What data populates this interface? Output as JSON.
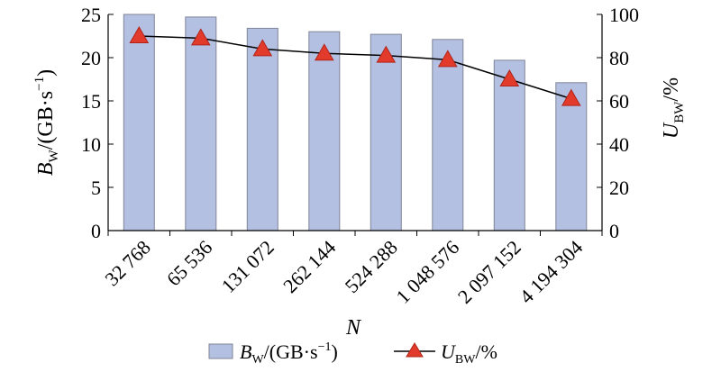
{
  "chart_data": {
    "type": "bar+line",
    "categories": [
      "32 768",
      "65 536",
      "131 072",
      "262 144",
      "524 288",
      "1 048 576",
      "2 097 152",
      "4 194 304"
    ],
    "xlabel": "N",
    "series": [
      {
        "name": "BW/(GB·s⁻¹)",
        "type": "bar",
        "axis": "left",
        "values": [
          25.0,
          24.7,
          23.4,
          23.0,
          22.7,
          22.1,
          19.7,
          17.1
        ]
      },
      {
        "name": "UBW/%",
        "type": "line",
        "axis": "right",
        "values": [
          90,
          89,
          84,
          82,
          81,
          79,
          70,
          61
        ]
      }
    ],
    "y_left": {
      "label_main": "B",
      "label_sub": "W",
      "label_rest": "/(GB·s",
      "label_sup": "−1",
      "label_end": ")",
      "lim": [
        0,
        25
      ],
      "ticks": [
        "0",
        "5",
        "10",
        "15",
        "20",
        "25"
      ]
    },
    "y_right": {
      "label_main": "U",
      "label_sub": "BW",
      "label_rest": "/%",
      "lim": [
        0,
        100
      ],
      "ticks": [
        "0",
        "20",
        "40",
        "60",
        "80",
        "100"
      ]
    },
    "legend": {
      "placement": "bottom",
      "bar": {
        "main": "B",
        "sub": "W",
        "rest": "/(GB·s",
        "sup": "−1",
        "end": ")"
      },
      "line": {
        "main": "U",
        "sub": "BW",
        "rest": "/%"
      }
    },
    "colors": {
      "bar_fill": "#b4c0e2",
      "bar_stroke": "#7f8597",
      "line": "#000000",
      "marker_fill": "#e23b2c",
      "marker_stroke": "#b0241a"
    },
    "grid": false
  }
}
